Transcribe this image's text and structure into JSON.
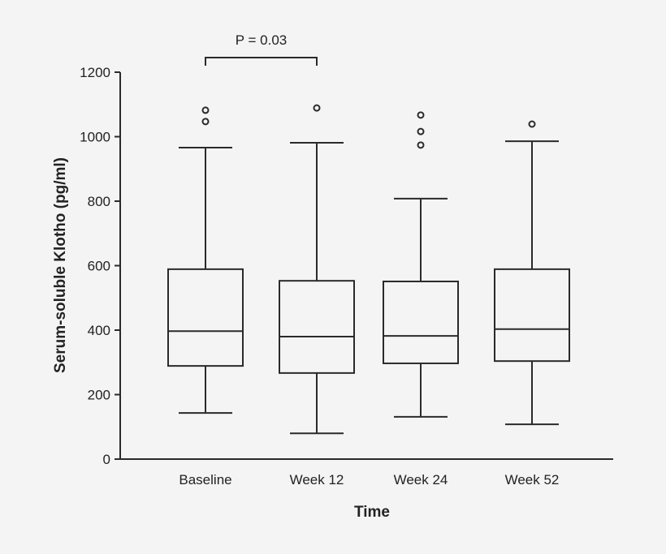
{
  "chart_data": {
    "type": "box",
    "xlabel": "Time",
    "ylabel": "Serum-soluble Klotho (pg/ml)",
    "ylim": [
      0,
      1200
    ],
    "yticks": [
      0,
      200,
      400,
      600,
      800,
      1000,
      1200
    ],
    "grid": false,
    "categories": [
      "Baseline",
      "Week 12",
      "Week 24",
      "Week 52"
    ],
    "boxes": [
      {
        "min": 143,
        "q1": 289,
        "median": 397,
        "q3": 589,
        "max": 966,
        "outliers": [
          1047,
          1082
        ]
      },
      {
        "min": 80,
        "q1": 267,
        "median": 380,
        "q3": 553,
        "max": 981,
        "outliers": [
          1089
        ]
      },
      {
        "min": 131,
        "q1": 297,
        "median": 382,
        "q3": 551,
        "max": 808,
        "outliers": [
          974,
          1016,
          1067
        ]
      },
      {
        "min": 108,
        "q1": 304,
        "median": 403,
        "q3": 589,
        "max": 986,
        "outliers": [
          1039
        ]
      }
    ],
    "annotation": {
      "text": "P = 0.03",
      "from": "Baseline",
      "to": "Week 12"
    },
    "colors": {
      "line": "#2a2a2a",
      "background": "#f4f4f4"
    }
  }
}
